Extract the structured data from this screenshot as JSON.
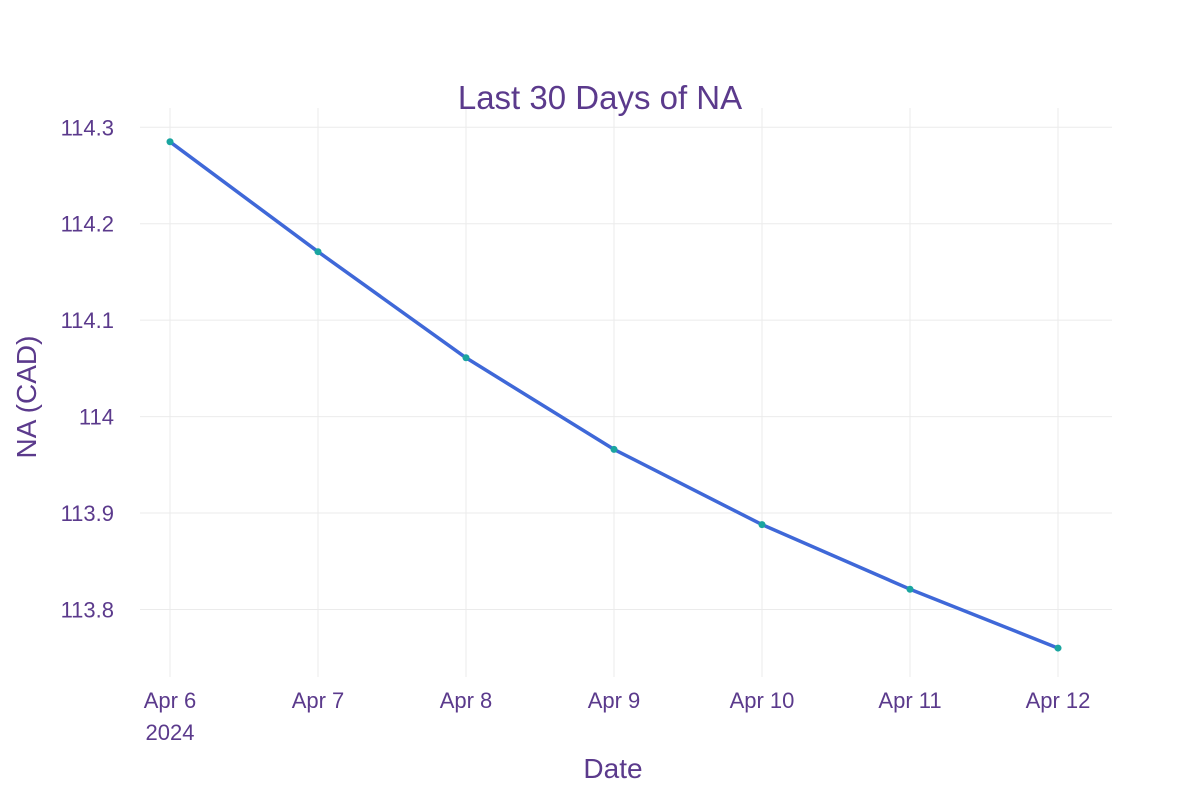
{
  "colors": {
    "text": "#5b3a8c",
    "line": "#3f68d8",
    "marker": "#1aa5a0",
    "grid": "#ebebeb"
  },
  "chart_data": {
    "type": "line",
    "title": "Last 30 Days of NA",
    "xlabel": "Date",
    "ylabel": "NA (CAD)",
    "x": [
      "2024-04-06",
      "2024-04-07",
      "2024-04-08",
      "2024-04-09",
      "2024-04-10",
      "2024-04-11",
      "2024-04-12"
    ],
    "x_tick_labels": [
      "Apr 6",
      "Apr 7",
      "Apr 8",
      "Apr 9",
      "Apr 10",
      "Apr 11",
      "Apr 12"
    ],
    "x_tick_year": "2024",
    "series": [
      {
        "values": [
          114.285,
          114.171,
          114.061,
          113.966,
          113.888,
          113.821,
          113.76
        ]
      }
    ],
    "y_ticks": [
      113.8,
      113.9,
      114,
      114.1,
      114.2,
      114.3
    ],
    "y_tick_labels": [
      "113.8",
      "113.9",
      "114",
      "114.1",
      "114.2",
      "114.3"
    ],
    "ylim": [
      113.73,
      114.32
    ],
    "grid": true,
    "legend": "none"
  }
}
